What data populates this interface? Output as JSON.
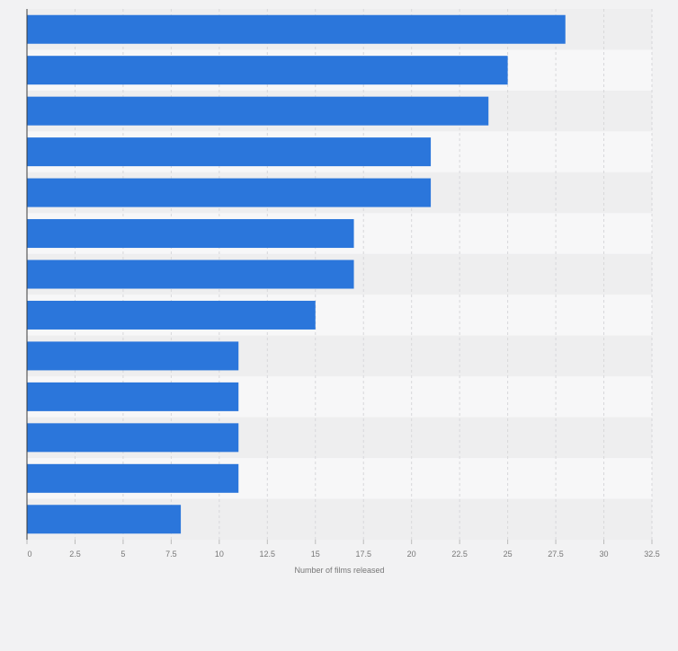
{
  "chart_data": {
    "type": "bar",
    "orientation": "horizontal",
    "categories": [
      "",
      "",
      "",
      "",
      "",
      "",
      "",
      "",
      "",
      "",
      "",
      "",
      ""
    ],
    "values": [
      28,
      25,
      24,
      21,
      21,
      17,
      17,
      15,
      11,
      11,
      11,
      11,
      8
    ],
    "xlabel": "Number of films released",
    "xlim": [
      0,
      32.5
    ],
    "ticks": [
      0,
      2.5,
      5,
      7.5,
      10,
      12.5,
      15,
      17.5,
      20,
      22.5,
      25,
      27.5,
      30,
      32.5
    ],
    "tick_labels": [
      "0",
      "2.5",
      "5",
      "7.5",
      "10",
      "12.5",
      "15",
      "17.5",
      "20",
      "22.5",
      "25",
      "27.5",
      "30",
      "32.5"
    ],
    "grid": true,
    "colors": {
      "bar": "#2b76db",
      "band_dark": "#eeeeef",
      "band_light": "#f7f7f8",
      "grid": "#d7d7da",
      "axis": "#3a3a3a",
      "tick_text": "#777777"
    }
  }
}
